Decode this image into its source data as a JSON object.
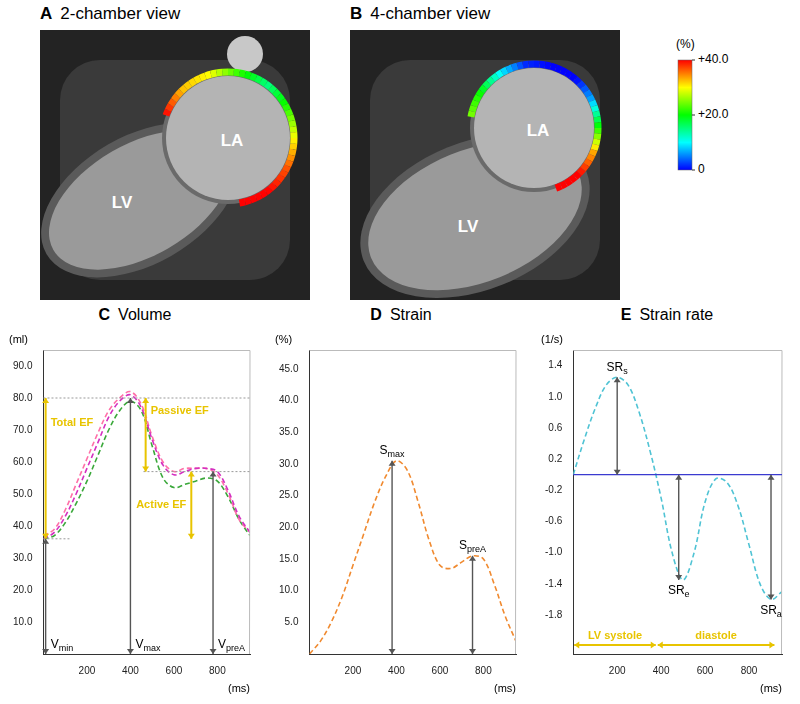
{
  "image_panels": [
    {
      "letter": "A",
      "title": "2-chamber view",
      "labels": [
        "LV",
        "LA"
      ]
    },
    {
      "letter": "B",
      "title": "4-chamber view",
      "labels": [
        "LA",
        "LV"
      ]
    }
  ],
  "color_bar": {
    "unit": "(%)",
    "range": [
      0,
      40
    ],
    "ticks": [
      {
        "value": 40,
        "label": "+40.0"
      },
      {
        "value": 20,
        "label": "+20.0"
      },
      0
    ]
  },
  "chart_data": [
    {
      "letter": "C",
      "title": "Volume",
      "type": "line",
      "ylabel": "(ml)",
      "xlabel": "(ms)",
      "x": [
        0,
        50,
        100,
        150,
        200,
        250,
        300,
        350,
        400,
        450,
        500,
        550,
        600,
        650,
        700,
        750,
        800,
        850,
        900,
        950
      ],
      "series": [
        {
          "color": "#d42fc0",
          "line_style": "dashed",
          "values": [
            36,
            38,
            43,
            50,
            58,
            66,
            74,
            79,
            81,
            77,
            67,
            59,
            56,
            57,
            58,
            58,
            57,
            51,
            43,
            38
          ]
        },
        {
          "color": "#ff6fa8",
          "line_style": "dashed",
          "values": [
            37,
            39,
            45,
            53,
            61,
            69,
            76,
            80,
            82,
            78,
            68,
            60,
            57,
            58,
            58,
            58,
            56,
            50,
            42,
            38
          ]
        },
        {
          "color": "#3aa83a",
          "line_style": "dashed",
          "values": [
            36,
            37,
            41,
            47,
            54,
            62,
            70,
            76,
            79,
            76,
            65,
            55,
            52,
            53,
            54,
            55,
            54,
            49,
            42,
            37
          ]
        }
      ],
      "xlim": [
        0,
        950
      ],
      "xticks": [
        200,
        400,
        600,
        800
      ],
      "ylim": [
        0,
        95
      ],
      "yticks": [
        {
          "value": 10,
          "label": "10.0"
        },
        {
          "value": 20,
          "label": "20.0"
        },
        {
          "value": 30,
          "label": "30.0"
        },
        {
          "value": 40,
          "label": "40.0"
        },
        {
          "value": 50,
          "label": "50.0"
        },
        {
          "value": 60,
          "label": "60.0"
        },
        {
          "value": 70,
          "label": "70.0"
        },
        {
          "value": 80,
          "label": "80.0"
        },
        {
          "value": 90,
          "label": "90.0"
        }
      ],
      "grid": false,
      "reference_lines": [
        {
          "y": 80,
          "x_from": 0,
          "x_to": 950
        },
        {
          "y": 57,
          "x_from": 460,
          "x_to": 950
        },
        {
          "y": 36,
          "x_from": 0,
          "x_to": 120
        }
      ],
      "brackets": [
        {
          "text": "Total EF",
          "x": 10,
          "y_from": 36,
          "y_to": 80
        },
        {
          "text": "Passive EF",
          "x": 470,
          "y_from": 57,
          "y_to": 80
        },
        {
          "text": "Active EF",
          "x": 680,
          "y_from": 36,
          "y_to": 57
        }
      ],
      "arrows": [
        {
          "text": "V",
          "sub": "min",
          "x": 10,
          "y_from": 0,
          "y_to": 36
        },
        {
          "text": "V",
          "sub": "max",
          "x": 400,
          "y_from": 0,
          "y_to": 80
        },
        {
          "text": "V",
          "sub": "preA",
          "x": 780,
          "y_from": 0,
          "y_to": 57
        }
      ]
    },
    {
      "letter": "D",
      "title": "Strain",
      "type": "line",
      "ylabel": "(%)",
      "xlabel": "(ms)",
      "x": [
        0,
        50,
        100,
        150,
        200,
        250,
        300,
        350,
        400,
        450,
        500,
        550,
        600,
        650,
        700,
        750,
        800,
        850,
        900,
        950
      ],
      "series": [
        {
          "color": "#f08a30",
          "line_style": "dashed",
          "values": [
            0,
            2,
            5,
            9,
            14,
            19,
            24,
            28,
            30.5,
            29,
            24,
            18,
            14,
            13.5,
            14.5,
            15.5,
            15,
            11,
            6,
            2
          ]
        }
      ],
      "xlim": [
        0,
        950
      ],
      "xticks": [
        200,
        400,
        600,
        800
      ],
      "ylim": [
        0,
        48
      ],
      "yticks": [
        {
          "value": 5,
          "label": "5.0"
        },
        {
          "value": 10,
          "label": "10.0"
        },
        {
          "value": 15,
          "label": "15.0"
        },
        {
          "value": 20,
          "label": "20.0"
        },
        {
          "value": 25,
          "label": "25.0"
        },
        {
          "value": 30,
          "label": "30.0"
        },
        {
          "value": 35,
          "label": "35.0"
        },
        {
          "value": 40,
          "label": "40.0"
        },
        {
          "value": 45,
          "label": "45.0"
        }
      ],
      "grid": false,
      "arrows": [
        {
          "text": "S",
          "sub": "max",
          "x": 380,
          "y_from": 0,
          "y_to": 30.5
        },
        {
          "text": "S",
          "sub": "preA",
          "x": 750,
          "y_from": 0,
          "y_to": 15.5
        }
      ]
    },
    {
      "letter": "E",
      "title": "Strain rate",
      "type": "line",
      "ylabel": "(1/s)",
      "xlabel": "(ms)",
      "x": [
        0,
        50,
        100,
        150,
        200,
        250,
        300,
        350,
        400,
        450,
        500,
        550,
        600,
        650,
        700,
        750,
        800,
        850,
        900,
        950
      ],
      "series": [
        {
          "color": "#4fc3d4",
          "line_style": "dashed",
          "values": [
            0,
            0.45,
            0.85,
            1.15,
            1.25,
            1.15,
            0.8,
            0.3,
            -0.3,
            -1.0,
            -1.35,
            -1.0,
            -0.35,
            -0.05,
            -0.1,
            -0.4,
            -0.9,
            -1.4,
            -1.6,
            -1.5
          ]
        }
      ],
      "xlim": [
        0,
        950
      ],
      "xticks": [
        200,
        400,
        600,
        800
      ],
      "ylim": [
        -2.3,
        1.6
      ],
      "yticks": [
        -1.8,
        -1.4,
        {
          "value": -1.0,
          "label": "-1.0"
        },
        -0.6,
        -0.2,
        0.2,
        0.6,
        {
          "value": 1.0,
          "label": "1.0"
        },
        1.4
      ],
      "grid": false,
      "reference_lines": [
        {
          "y": 0,
          "x_from": 0,
          "x_to": 950
        }
      ],
      "arrows": [
        {
          "text": "SR",
          "sub": "s",
          "x": 200,
          "y_from": 0,
          "y_to": 1.25
        },
        {
          "text": "SR",
          "sub": "e",
          "x": 480,
          "y_from": 0,
          "y_to": -1.35
        },
        {
          "text": "SR",
          "sub": "a",
          "x": 900,
          "y_from": 0,
          "y_to": -1.6
        }
      ],
      "phases": [
        {
          "text": "LV systole",
          "x_from": 0,
          "x_to": 380
        },
        {
          "text": "diastole",
          "x_from": 380,
          "x_to": 920
        }
      ]
    }
  ]
}
